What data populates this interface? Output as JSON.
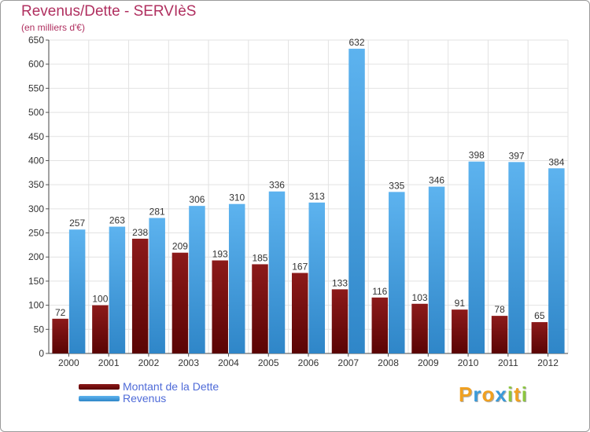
{
  "chart_data": {
    "type": "bar",
    "title": "Revenus/Dette - SERVIèS",
    "subtitle": "(en milliers d'€)",
    "xlabel": "",
    "ylabel": "",
    "ylim": [
      0,
      650
    ],
    "yticks": [
      0,
      50,
      100,
      150,
      200,
      250,
      300,
      350,
      400,
      450,
      500,
      550,
      600,
      650
    ],
    "grid": true,
    "legend_position": "bottom-left",
    "categories": [
      "2000",
      "2001",
      "2002",
      "2003",
      "2004",
      "2005",
      "2006",
      "2007",
      "2008",
      "2009",
      "2010",
      "2011",
      "2012"
    ],
    "series": [
      {
        "name": "Montant de la Dette",
        "color": "#7a1010",
        "values": [
          72,
          100,
          238,
          209,
          193,
          185,
          167,
          133,
          116,
          103,
          91,
          78,
          65
        ]
      },
      {
        "name": "Revenus",
        "color": "#4aa3e6",
        "values": [
          257,
          263,
          281,
          306,
          310,
          336,
          313,
          632,
          335,
          346,
          398,
          397,
          384
        ]
      }
    ]
  },
  "logo": {
    "letters": [
      {
        "ch": "P",
        "color": "#f0a020"
      },
      {
        "ch": "r",
        "color": "#3a9ad9"
      },
      {
        "ch": "o",
        "color": "#f0a020"
      },
      {
        "ch": "x",
        "color": "#3a9ad9"
      },
      {
        "ch": "i",
        "color": "#8cc63f"
      },
      {
        "ch": "t",
        "color": "#f0a020"
      },
      {
        "ch": "i",
        "color": "#8cc63f"
      }
    ]
  }
}
